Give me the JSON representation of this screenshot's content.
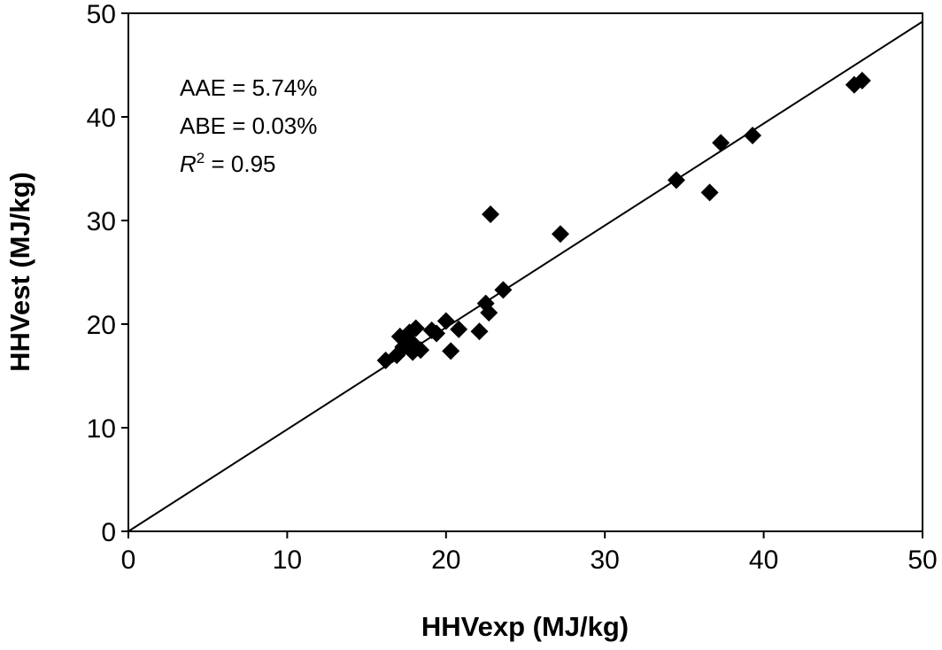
{
  "chart_data": {
    "type": "scatter",
    "title": "",
    "xlabel": "HHVexp (MJ/kg)",
    "ylabel": "HHVest (MJ/kg)",
    "xlim": [
      0,
      50
    ],
    "ylim": [
      0,
      50
    ],
    "xticks": [
      "0",
      "10",
      "20",
      "30",
      "40",
      "50"
    ],
    "yticks": [
      "0",
      "10",
      "20",
      "30",
      "40",
      "50"
    ],
    "grid": false,
    "legend": "none",
    "annotations": [
      "AAE = 5.74%",
      "ABE = 0.03%",
      "R",
      "2",
      " = 0.95"
    ],
    "reference_line": {
      "x": [
        0,
        50
      ],
      "y": [
        0,
        49.2
      ]
    },
    "points": [
      {
        "x": 16.2,
        "y": 16.5
      },
      {
        "x": 16.9,
        "y": 17.0
      },
      {
        "x": 17.1,
        "y": 18.8
      },
      {
        "x": 17.3,
        "y": 17.8
      },
      {
        "x": 17.6,
        "y": 18.4
      },
      {
        "x": 17.7,
        "y": 19.2
      },
      {
        "x": 17.9,
        "y": 17.3
      },
      {
        "x": 18.0,
        "y": 18.0
      },
      {
        "x": 18.1,
        "y": 19.6
      },
      {
        "x": 18.4,
        "y": 17.5
      },
      {
        "x": 19.1,
        "y": 19.4
      },
      {
        "x": 19.4,
        "y": 19.1
      },
      {
        "x": 20.0,
        "y": 20.3
      },
      {
        "x": 20.3,
        "y": 17.4
      },
      {
        "x": 20.8,
        "y": 19.5
      },
      {
        "x": 22.1,
        "y": 19.3
      },
      {
        "x": 22.5,
        "y": 22.0
      },
      {
        "x": 22.7,
        "y": 21.1
      },
      {
        "x": 22.8,
        "y": 30.6
      },
      {
        "x": 23.6,
        "y": 23.3
      },
      {
        "x": 27.2,
        "y": 28.7
      },
      {
        "x": 34.5,
        "y": 33.9
      },
      {
        "x": 36.6,
        "y": 32.7
      },
      {
        "x": 37.3,
        "y": 37.5
      },
      {
        "x": 39.3,
        "y": 38.2
      },
      {
        "x": 45.7,
        "y": 43.1
      },
      {
        "x": 46.2,
        "y": 43.5
      }
    ]
  }
}
